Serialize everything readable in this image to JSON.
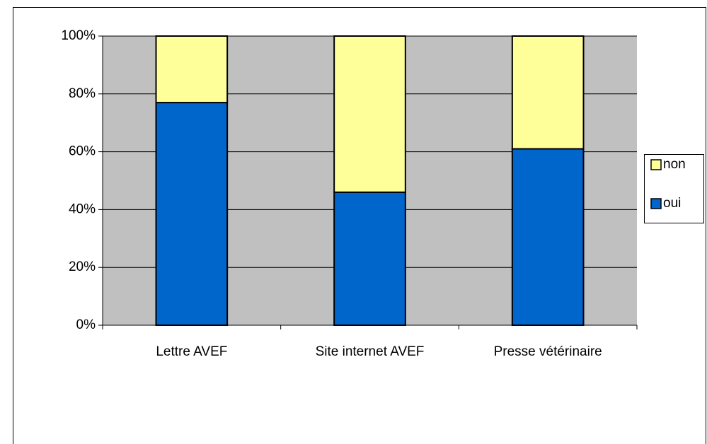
{
  "chart_data": {
    "type": "stacked_bar",
    "categories": [
      "Lettre AVEF",
      "Site internet AVEF",
      "Presse vétérinaire"
    ],
    "series": [
      {
        "name": "oui",
        "color": "#0066cc",
        "values": [
          77,
          46,
          61
        ]
      },
      {
        "name": "non",
        "color": "#ffff99",
        "values": [
          23,
          54,
          39
        ]
      }
    ],
    "ylim": [
      0,
      100
    ],
    "yticks": [
      {
        "value": 0,
        "label": "0%"
      },
      {
        "value": 20,
        "label": "20%"
      },
      {
        "value": 40,
        "label": "40%"
      },
      {
        "value": 60,
        "label": "60%"
      },
      {
        "value": 80,
        "label": "80%"
      },
      {
        "value": 100,
        "label": "100%"
      }
    ],
    "grid": true,
    "legend": "right"
  }
}
